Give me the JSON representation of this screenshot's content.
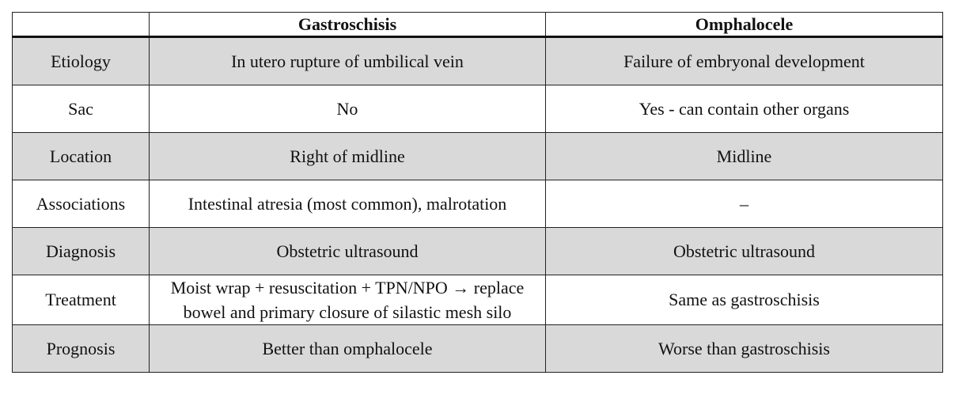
{
  "table": {
    "headers": [
      "",
      "Gastroschisis",
      "Omphalocele"
    ],
    "rows": [
      {
        "label": "Etiology",
        "gastroschisis": "In utero rupture of umbilical vein",
        "omphalocele": "Failure of embryonal development",
        "shaded": true
      },
      {
        "label": "Sac",
        "gastroschisis": "No",
        "omphalocele": "Yes - can contain other organs",
        "shaded": false
      },
      {
        "label": "Location",
        "gastroschisis": "Right of midline",
        "omphalocele": "Midline",
        "shaded": true
      },
      {
        "label": "Associations",
        "gastroschisis": "Intestinal atresia (most common), malrotation",
        "omphalocele": "–",
        "shaded": false
      },
      {
        "label": "Diagnosis",
        "gastroschisis": "Obstetric ultrasound",
        "omphalocele": "Obstetric ultrasound",
        "shaded": true
      },
      {
        "label": "Treatment",
        "gastroschisis": "Moist wrap + resuscitation + TPN/NPO → replace bowel and primary closure of silastic mesh silo",
        "omphalocele": "Same as gastroschisis",
        "shaded": false
      },
      {
        "label": "Prognosis",
        "gastroschisis": "Better than omphalocele",
        "omphalocele": "Worse than gastroschisis",
        "shaded": true
      }
    ],
    "colors": {
      "shaded_row": "#d9d9d9",
      "plain_row": "#ffffff",
      "border": "#222222"
    }
  }
}
